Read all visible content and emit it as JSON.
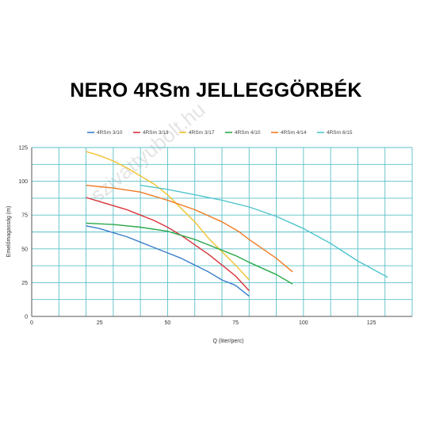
{
  "watermark": "szivattyubolt.hu",
  "chart_data": {
    "type": "line",
    "title": "NERO 4RSm JELLEGGÖRBÉK",
    "xlabel": "Q (liter/perc)",
    "ylabel": "Emelőmagasság (m)",
    "xlim": [
      0,
      140
    ],
    "ylim": [
      0,
      125
    ],
    "x_ticks": [
      0,
      25,
      50,
      75,
      100,
      125
    ],
    "y_ticks": [
      0,
      25,
      50,
      75,
      100,
      125
    ],
    "grid": true,
    "grid_color": "#5bc0c8",
    "legend_position": "top",
    "series": [
      {
        "name": "4RSm 3/10",
        "color": "#3a7dc9",
        "points": [
          [
            20,
            67
          ],
          [
            25,
            65
          ],
          [
            30,
            62
          ],
          [
            35,
            59
          ],
          [
            40,
            55
          ],
          [
            45,
            51
          ],
          [
            50,
            47
          ],
          [
            55,
            43
          ],
          [
            60,
            38
          ],
          [
            65,
            33
          ],
          [
            70,
            27
          ],
          [
            75,
            23
          ],
          [
            80,
            15
          ]
        ]
      },
      {
        "name": "4RSm 3/13",
        "color": "#d9343a",
        "points": [
          [
            20,
            88
          ],
          [
            25,
            85
          ],
          [
            30,
            82
          ],
          [
            35,
            79
          ],
          [
            40,
            75
          ],
          [
            45,
            71
          ],
          [
            50,
            66
          ],
          [
            55,
            60
          ],
          [
            60,
            53
          ],
          [
            65,
            46
          ],
          [
            70,
            38
          ],
          [
            75,
            30
          ],
          [
            80,
            19
          ]
        ]
      },
      {
        "name": "4RSm 3/17",
        "color": "#f2c12e",
        "points": [
          [
            20,
            122
          ],
          [
            25,
            119
          ],
          [
            30,
            115
          ],
          [
            35,
            110
          ],
          [
            40,
            104
          ],
          [
            45,
            98
          ],
          [
            50,
            90
          ],
          [
            55,
            80
          ],
          [
            60,
            70
          ],
          [
            65,
            58
          ],
          [
            70,
            48
          ],
          [
            75,
            38
          ],
          [
            80,
            27
          ]
        ]
      },
      {
        "name": "4RSm 4/10",
        "color": "#2aa84a",
        "points": [
          [
            20,
            69
          ],
          [
            30,
            68
          ],
          [
            40,
            66
          ],
          [
            50,
            63
          ],
          [
            60,
            57
          ],
          [
            70,
            49
          ],
          [
            75,
            45
          ],
          [
            80,
            40
          ],
          [
            90,
            31
          ],
          [
            96,
            24
          ]
        ]
      },
      {
        "name": "4RSm 4/14",
        "color": "#ee7a22",
        "points": [
          [
            20,
            97
          ],
          [
            30,
            95
          ],
          [
            40,
            92
          ],
          [
            50,
            86
          ],
          [
            60,
            79
          ],
          [
            70,
            70
          ],
          [
            76,
            63
          ],
          [
            80,
            57
          ],
          [
            90,
            43
          ],
          [
            96,
            33
          ]
        ]
      },
      {
        "name": "4RSm 6/15",
        "color": "#4fc4cc",
        "points": [
          [
            40,
            97
          ],
          [
            50,
            94
          ],
          [
            60,
            90
          ],
          [
            70,
            86
          ],
          [
            80,
            81
          ],
          [
            90,
            74
          ],
          [
            100,
            65
          ],
          [
            110,
            54
          ],
          [
            120,
            41
          ],
          [
            131,
            29
          ]
        ]
      }
    ]
  }
}
